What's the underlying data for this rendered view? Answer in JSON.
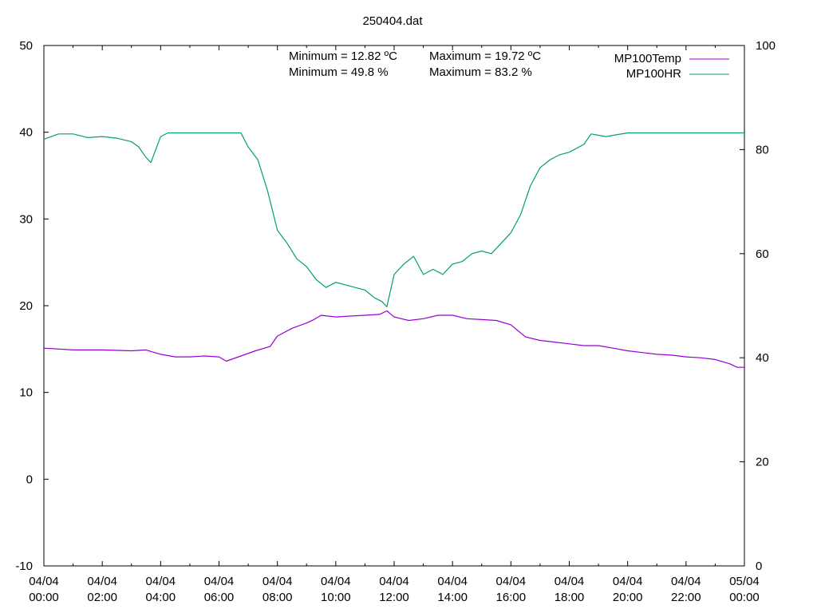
{
  "chart_data": {
    "type": "line",
    "title": "250404.dat",
    "x_ticks": [
      [
        "04/04",
        "00:00"
      ],
      [
        "04/04",
        "02:00"
      ],
      [
        "04/04",
        "04:00"
      ],
      [
        "04/04",
        "06:00"
      ],
      [
        "04/04",
        "08:00"
      ],
      [
        "04/04",
        "10:00"
      ],
      [
        "04/04",
        "12:00"
      ],
      [
        "04/04",
        "14:00"
      ],
      [
        "04/04",
        "16:00"
      ],
      [
        "04/04",
        "18:00"
      ],
      [
        "04/04",
        "20:00"
      ],
      [
        "04/04",
        "22:00"
      ],
      [
        "05/04",
        "00:00"
      ]
    ],
    "xlim": [
      "04/04 00:00",
      "05/04 00:00"
    ],
    "y_left_ticks": [
      "-10",
      "0",
      "10",
      "20",
      "30",
      "40",
      "50"
    ],
    "ylim_left": [
      -10,
      50
    ],
    "y_right_ticks": [
      "0",
      "20",
      "40",
      "60",
      "80",
      "100"
    ],
    "ylim_right": [
      0,
      100
    ],
    "grid": false,
    "legend_position": "top-right",
    "stats": {
      "row1": [
        "Minimum = 12.82 ºC",
        "Maximum = 19.72 ºC"
      ],
      "row2": [
        "Minimum = 49.8 %",
        "Maximum = 83.2 %"
      ]
    },
    "series": [
      {
        "name": "MP100Temp",
        "axis": "left",
        "color": "#9400d3",
        "x": [
          "04/04 00:00",
          "04/04 01:00",
          "04/04 02:00",
          "04/04 03:00",
          "04/04 03:30",
          "04/04 04:00",
          "04/04 04:30",
          "04/04 05:00",
          "04/04 05:30",
          "04/04 06:00",
          "04/04 06:15",
          "04/04 06:45",
          "04/04 07:15",
          "04/04 07:45",
          "04/04 08:00",
          "04/04 08:30",
          "04/04 09:00",
          "04/04 09:15",
          "04/04 09:30",
          "04/04 10:00",
          "04/04 10:30",
          "04/04 11:00",
          "04/04 11:30",
          "04/04 11:45",
          "04/04 12:00",
          "04/04 12:30",
          "04/04 13:00",
          "04/04 13:30",
          "04/04 14:00",
          "04/04 14:30",
          "04/04 15:00",
          "04/04 15:30",
          "04/04 16:00",
          "04/04 16:30",
          "04/04 17:00",
          "04/04 17:30",
          "04/04 18:00",
          "04/04 18:30",
          "04/04 19:00",
          "04/04 19:30",
          "04/04 20:00",
          "04/04 20:30",
          "04/04 21:00",
          "04/04 21:30",
          "04/04 22:00",
          "04/04 22:30",
          "04/04 23:00",
          "04/04 23:30",
          "04/04 23:45",
          "05/04 00:00"
        ],
        "values": [
          15.1,
          14.9,
          14.9,
          14.8,
          14.9,
          14.4,
          14.1,
          14.1,
          14.2,
          14.1,
          13.6,
          14.2,
          14.8,
          15.3,
          16.5,
          17.4,
          18.0,
          18.4,
          18.9,
          18.7,
          18.8,
          18.9,
          19.0,
          19.4,
          18.7,
          18.3,
          18.5,
          18.9,
          18.9,
          18.5,
          18.4,
          18.3,
          17.8,
          16.4,
          16.0,
          15.8,
          15.6,
          15.4,
          15.4,
          15.1,
          14.8,
          14.6,
          14.4,
          14.3,
          14.1,
          14.0,
          13.8,
          13.3,
          12.9,
          12.9
        ]
      },
      {
        "name": "MP100HR",
        "axis": "right",
        "color": "#009e73",
        "x": [
          "04/04 00:00",
          "04/04 00:30",
          "04/04 01:00",
          "04/04 01:30",
          "04/04 02:00",
          "04/04 02:30",
          "04/04 03:00",
          "04/04 03:15",
          "04/04 03:30",
          "04/04 03:40",
          "04/04 04:00",
          "04/04 04:15",
          "04/04 05:00",
          "04/04 06:00",
          "04/04 06:45",
          "04/04 07:00",
          "04/04 07:20",
          "04/04 07:40",
          "04/04 08:00",
          "04/04 08:20",
          "04/04 08:40",
          "04/04 09:00",
          "04/04 09:20",
          "04/04 09:40",
          "04/04 10:00",
          "04/04 10:20",
          "04/04 10:40",
          "04/04 11:00",
          "04/04 11:20",
          "04/04 11:35",
          "04/04 11:45",
          "04/04 12:00",
          "04/04 12:20",
          "04/04 12:40",
          "04/04 13:00",
          "04/04 13:20",
          "04/04 13:40",
          "04/04 14:00",
          "04/04 14:20",
          "04/04 14:40",
          "04/04 15:00",
          "04/04 15:20",
          "04/04 15:40",
          "04/04 16:00",
          "04/04 16:20",
          "04/04 16:40",
          "04/04 17:00",
          "04/04 17:20",
          "04/04 17:40",
          "04/04 18:00",
          "04/04 18:30",
          "04/04 18:45",
          "04/04 19:15",
          "04/04 20:00",
          "05/04 00:00"
        ],
        "values": [
          82.0,
          83.0,
          83.0,
          82.3,
          82.5,
          82.2,
          81.5,
          80.5,
          78.5,
          77.5,
          82.5,
          83.2,
          83.2,
          83.2,
          83.2,
          80.5,
          78.0,
          72.0,
          64.5,
          62.0,
          59.0,
          57.5,
          55.0,
          53.5,
          54.5,
          54.0,
          53.5,
          53.0,
          51.5,
          50.8,
          49.8,
          56.0,
          58.0,
          59.5,
          56.0,
          57.0,
          56.0,
          58.0,
          58.5,
          60.0,
          60.5,
          60.0,
          62.0,
          64.0,
          67.5,
          73.0,
          76.5,
          78.0,
          79.0,
          79.5,
          81.0,
          83.0,
          82.5,
          83.2,
          83.2
        ]
      }
    ]
  }
}
